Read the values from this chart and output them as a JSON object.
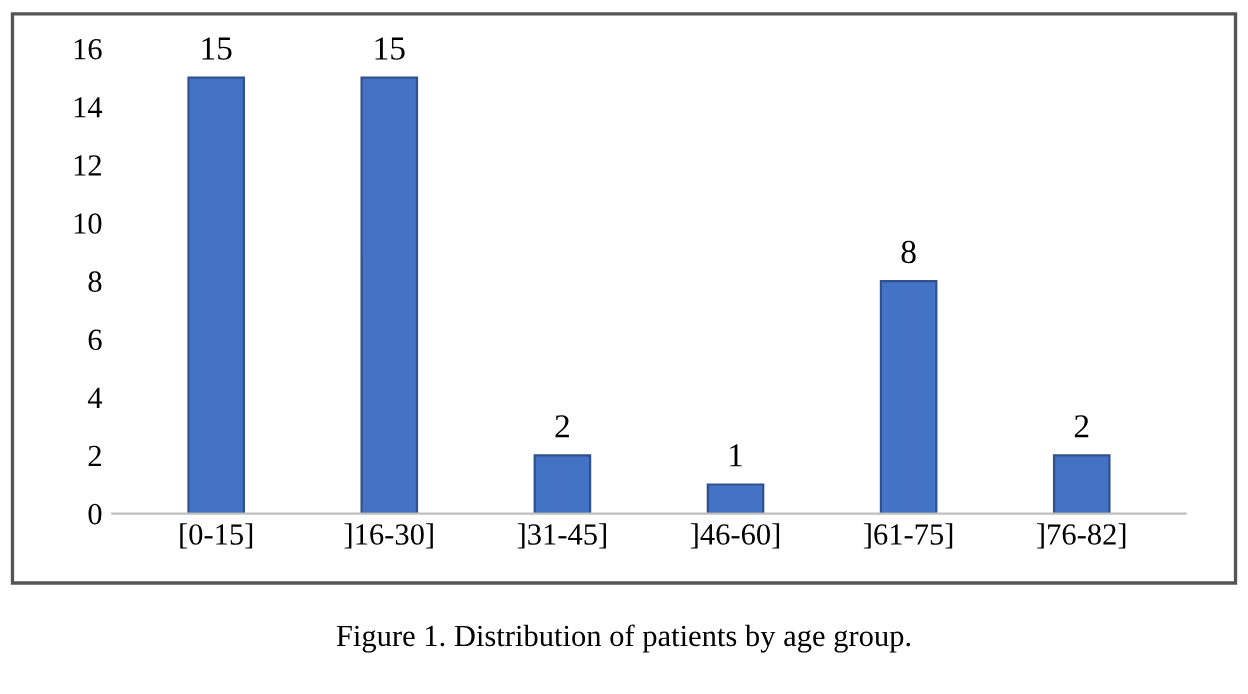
{
  "chart_data": {
    "type": "bar",
    "categories": [
      "[0-15]",
      "]16-30]",
      "]31-45]",
      "]46-60]",
      "]61-75]",
      "]76-82]"
    ],
    "values": [
      15,
      15,
      2,
      1,
      8,
      2
    ],
    "color": "#4472c4",
    "ylim": [
      0,
      16
    ],
    "yticks": [
      0,
      2,
      4,
      6,
      8,
      10,
      12,
      14,
      16
    ],
    "grid": false,
    "data_labels": true,
    "annotations": [
      "Figure 1. Distribution of patients by age group."
    ]
  }
}
